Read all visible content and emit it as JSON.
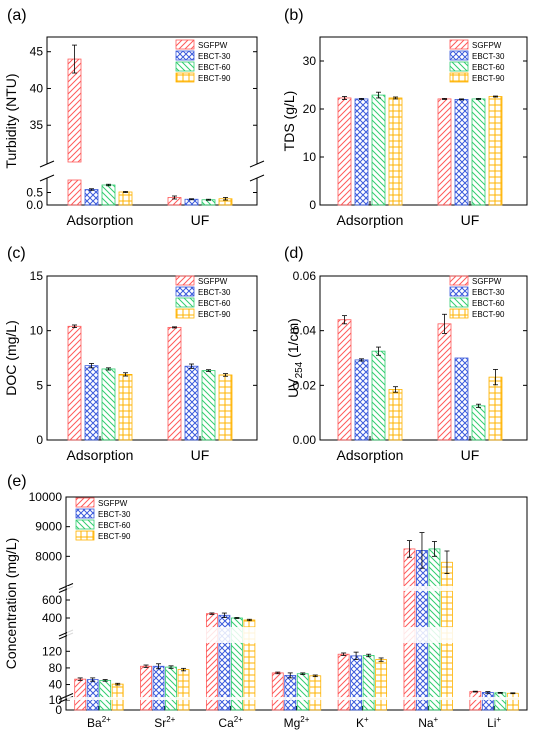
{
  "colors": {
    "SGFPW": "#ff5a5a",
    "EBCT-30": "#3b5bdb",
    "EBCT-60": "#32cd70",
    "EBCT-90": "#ffb300"
  },
  "legend": [
    "SGFPW",
    "EBCT-30",
    "EBCT-60",
    "EBCT-90"
  ],
  "chart_data": [
    {
      "panel": "(a)",
      "type": "bar",
      "ylabel": "Turbidity (NTU)",
      "categories": [
        "Adsorption",
        "UF"
      ],
      "broken_axis": true,
      "ylim_lower": [
        0,
        1.0
      ],
      "ylim_upper": [
        30,
        47
      ],
      "yticks_lower": [
        "0.0",
        "0.5"
      ],
      "yticks_upper": [
        "35",
        "40",
        "45"
      ],
      "series": [
        {
          "name": "SGFPW",
          "values": [
            44.0,
            0.3
          ],
          "errors": [
            1.9,
            0.06
          ]
        },
        {
          "name": "EBCT-30",
          "values": [
            0.62,
            0.23
          ],
          "errors": [
            0.03,
            0.02
          ]
        },
        {
          "name": "EBCT-60",
          "values": [
            0.8,
            0.21
          ],
          "errors": [
            0.03,
            0.02
          ]
        },
        {
          "name": "EBCT-90",
          "values": [
            0.52,
            0.25
          ],
          "errors": [
            0.02,
            0.05
          ]
        }
      ]
    },
    {
      "panel": "(b)",
      "type": "bar",
      "ylabel": "TDS (g/L)",
      "categories": [
        "Adsorption",
        "UF"
      ],
      "ylim": [
        0,
        35
      ],
      "yticks": [
        "0",
        "10",
        "20",
        "30"
      ],
      "series": [
        {
          "name": "SGFPW",
          "values": [
            22.3,
            22.1
          ],
          "errors": [
            0.3,
            0.1
          ]
        },
        {
          "name": "EBCT-30",
          "values": [
            22.1,
            22.0
          ],
          "errors": [
            0.1,
            0.1
          ]
        },
        {
          "name": "EBCT-60",
          "values": [
            22.9,
            22.1
          ],
          "errors": [
            0.6,
            0.1
          ]
        },
        {
          "name": "EBCT-90",
          "values": [
            22.3,
            22.6
          ],
          "errors": [
            0.2,
            0.1
          ]
        }
      ]
    },
    {
      "panel": "(c)",
      "type": "bar",
      "ylabel": "DOC (mg/L)",
      "categories": [
        "Adsorption",
        "UF"
      ],
      "ylim": [
        0,
        15
      ],
      "yticks": [
        "0",
        "5",
        "10",
        "15"
      ],
      "series": [
        {
          "name": "SGFPW",
          "values": [
            10.4,
            10.3
          ],
          "errors": [
            0.12,
            0.05
          ]
        },
        {
          "name": "EBCT-30",
          "values": [
            6.8,
            6.75
          ],
          "errors": [
            0.2,
            0.2
          ]
        },
        {
          "name": "EBCT-60",
          "values": [
            6.5,
            6.35
          ],
          "errors": [
            0.1,
            0.08
          ]
        },
        {
          "name": "EBCT-90",
          "values": [
            6.0,
            5.95
          ],
          "errors": [
            0.15,
            0.12
          ]
        }
      ]
    },
    {
      "panel": "(d)",
      "type": "bar",
      "ylabel": "UV254 (1/cm)",
      "categories": [
        "Adsorption",
        "UF"
      ],
      "ylim": [
        0,
        0.06
      ],
      "yticks": [
        "0.00",
        "0.02",
        "0.04",
        "0.06"
      ],
      "series": [
        {
          "name": "SGFPW",
          "values": [
            0.044,
            0.0425
          ],
          "errors": [
            0.0015,
            0.0035
          ]
        },
        {
          "name": "EBCT-30",
          "values": [
            0.0293,
            0.03
          ],
          "errors": [
            0.0004,
            0.0
          ]
        },
        {
          "name": "EBCT-60",
          "values": [
            0.0325,
            0.0125
          ],
          "errors": [
            0.0015,
            0.0006
          ]
        },
        {
          "name": "EBCT-90",
          "values": [
            0.0185,
            0.023
          ],
          "errors": [
            0.001,
            0.0028
          ]
        }
      ]
    },
    {
      "panel": "(e)",
      "type": "bar",
      "ylabel": "Concentration (mg/L)",
      "categories": [
        "Ba2+",
        "Sr2+",
        "Ca2+",
        "Mg2+",
        "K+",
        "Na+",
        "Li+"
      ],
      "tick_labels": [
        {
          "base": "Ba",
          "sup": "2+"
        },
        {
          "base": "Sr",
          "sup": "2+"
        },
        {
          "base": "Ca",
          "sup": "2+"
        },
        {
          "base": "Mg",
          "sup": "2+"
        },
        {
          "base": "K",
          "sup": "+"
        },
        {
          "base": "Na",
          "sup": "+"
        },
        {
          "base": "Li",
          "sup": "+"
        }
      ],
      "yticks": [
        "0",
        "10",
        "40",
        "80",
        "120",
        "400",
        "600",
        "8000",
        "9000",
        "10000"
      ],
      "series": [
        {
          "name": "SGFPW",
          "values": [
            53,
            84,
            448,
            68,
            113,
            8250,
            23
          ],
          "errors": [
            3,
            3,
            8,
            2,
            3,
            280,
            1
          ]
        },
        {
          "name": "EBCT-30",
          "values": [
            52,
            84,
            430,
            62,
            109,
            8200,
            21
          ],
          "errors": [
            4,
            6,
            25,
            6,
            9,
            600,
            2
          ]
        },
        {
          "name": "EBCT-60",
          "values": [
            50,
            82,
            400,
            66,
            110,
            8250,
            20
          ],
          "errors": [
            2,
            3,
            6,
            2,
            3,
            250,
            1
          ]
        },
        {
          "name": "EBCT-90",
          "values": [
            41,
            76,
            378,
            61,
            100,
            7800,
            19
          ],
          "errors": [
            2,
            3,
            8,
            2,
            4,
            380,
            1
          ]
        }
      ]
    }
  ]
}
